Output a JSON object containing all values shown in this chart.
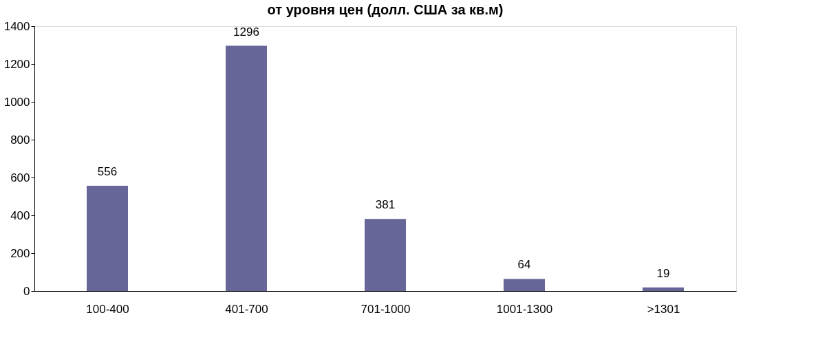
{
  "chart_data": {
    "type": "bar",
    "title": "от уровня цен (долл. США за кв.м)",
    "categories": [
      "100-400",
      "401-700",
      "701-1000",
      "1001-1300",
      ">1301"
    ],
    "values": [
      556,
      1296,
      381,
      64,
      19
    ],
    "color": "#666699",
    "ylim": [
      0,
      1400
    ],
    "yticks": [
      0,
      200,
      400,
      600,
      800,
      1000,
      1200,
      1400
    ],
    "data_labels": true,
    "grid": false
  }
}
